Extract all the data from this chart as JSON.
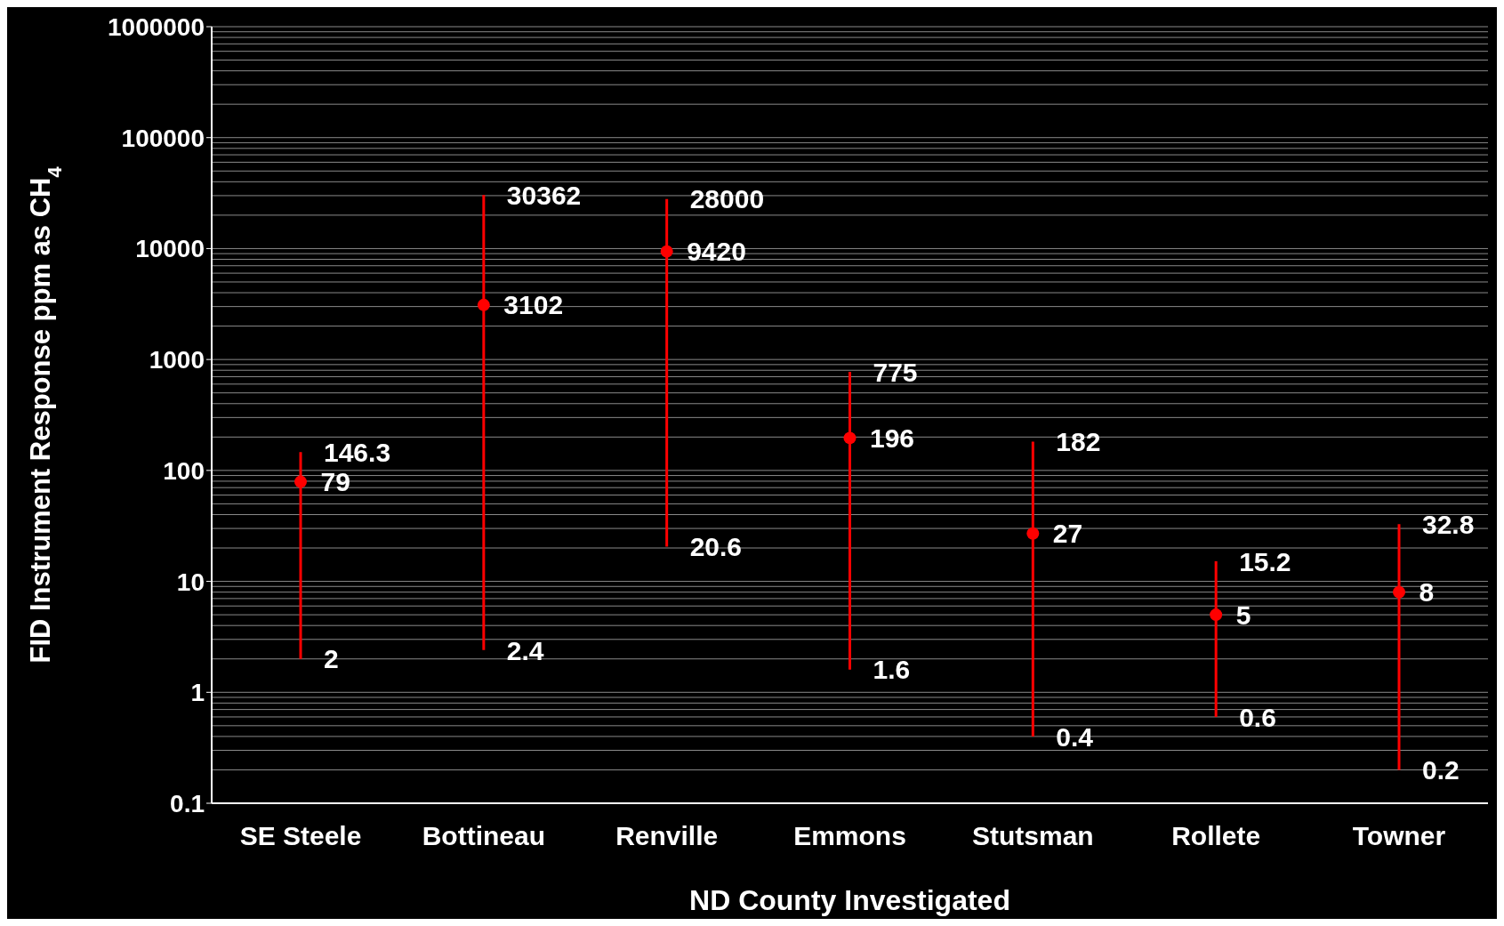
{
  "chart_data": {
    "type": "scatter",
    "xlabel": "ND County Investigated",
    "ylabel": "FID Instrument Response ppm as CH$_{4}$",
    "categories": [
      "SE Steele",
      "Bottineau",
      "Renville",
      "Emmons",
      "Stutsman",
      "Rollete",
      "Towner"
    ],
    "values": [
      79,
      3102,
      9420,
      196,
      27,
      5,
      8
    ],
    "errors": [
      [
        2,
        146.3
      ],
      [
        2.4,
        30362
      ],
      [
        20.6,
        28000
      ],
      [
        1.6,
        775
      ],
      [
        0.4,
        182
      ],
      [
        0.6,
        15.2
      ],
      [
        0.2,
        32.8
      ]
    ],
    "color": "#ff0000",
    "marker": "circle",
    "data_labels": true,
    "log": true,
    "grid": "y",
    "ylim": [
      0.1,
      1000000
    ],
    "yticks": [
      0.1,
      1,
      10,
      100,
      1000,
      10000,
      100000,
      1000000
    ],
    "annotations": [
      {
        "text": "146.3",
        "x": "SE Steele",
        "y": 146.3
      },
      {
        "text": "2",
        "x": "SE Steele",
        "y": 2
      },
      {
        "text": "30362",
        "x": "Bottineau",
        "y": 30362
      },
      {
        "text": "2.4",
        "x": "Bottineau",
        "y": 2.4
      },
      {
        "text": "28000",
        "x": "Renville",
        "y": 28000
      },
      {
        "text": "20.6",
        "x": "Renville",
        "y": 20.6
      },
      {
        "text": "775",
        "x": "Emmons",
        "y": 775
      },
      {
        "text": "1.6",
        "x": "Emmons",
        "y": 1.6
      },
      {
        "text": "182",
        "x": "Stutsman",
        "y": 182
      },
      {
        "text": "0.4",
        "x": "Stutsman",
        "y": 0.4
      },
      {
        "text": "15.2",
        "x": "Rollete",
        "y": 15.2
      },
      {
        "text": "0.6",
        "x": "Rollete",
        "y": 0.6
      },
      {
        "text": "32.8",
        "x": "Towner",
        "y": 32.8
      },
      {
        "text": "0.2",
        "x": "Towner",
        "y": 0.2
      }
    ]
  }
}
